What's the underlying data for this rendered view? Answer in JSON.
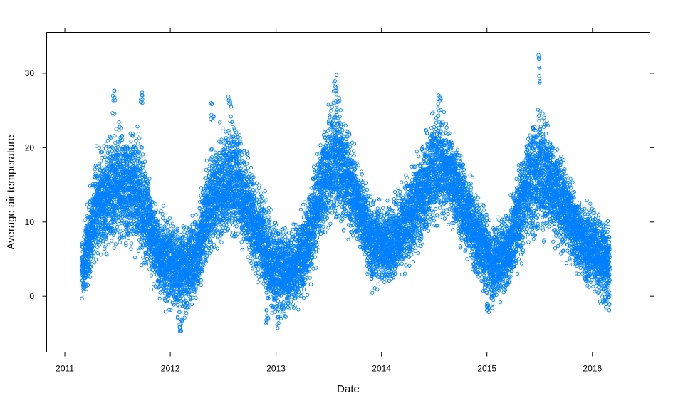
{
  "chart_data": {
    "type": "scatter",
    "title": "",
    "xlabel": "Date",
    "ylabel": "Average air temperature",
    "x_ticks": [
      "2011",
      "2012",
      "2013",
      "2014",
      "2015",
      "2016"
    ],
    "y_ticks": [
      "0",
      "10",
      "20",
      "30"
    ],
    "xlim": [
      "2010-10-30",
      "2016-07-18"
    ],
    "ylim": [
      -7.5,
      35.5
    ],
    "data_range": {
      "x": [
        "2011-03-01",
        "2016-03-01"
      ]
    },
    "marker": "open-circle",
    "color": "#0080ff",
    "grid": false,
    "legend": "none",
    "seasonal_profile": {
      "description_points": [
        {
          "x": "2011-03-05",
          "mean": 3,
          "spread": 7
        },
        {
          "x": "2011-04-15",
          "mean": 12,
          "spread": 9
        },
        {
          "x": "2011-07-01",
          "mean": 15,
          "spread": 10
        },
        {
          "x": "2011-09-15",
          "mean": 14,
          "spread": 10
        },
        {
          "x": "2011-11-15",
          "mean": 6,
          "spread": 7
        },
        {
          "x": "2012-02-01",
          "mean": 3,
          "spread": 8
        },
        {
          "x": "2012-03-25",
          "mean": 5,
          "spread": 7
        },
        {
          "x": "2012-06-01",
          "mean": 14,
          "spread": 10
        },
        {
          "x": "2012-08-15",
          "mean": 16,
          "spread": 10
        },
        {
          "x": "2012-10-15",
          "mean": 10,
          "spread": 8
        },
        {
          "x": "2012-12-20",
          "mean": 4,
          "spread": 8
        },
        {
          "x": "2013-02-15",
          "mean": 3,
          "spread": 7
        },
        {
          "x": "2013-04-10",
          "mean": 6,
          "spread": 8
        },
        {
          "x": "2013-06-15",
          "mean": 16,
          "spread": 9
        },
        {
          "x": "2013-07-25",
          "mean": 19,
          "spread": 11
        },
        {
          "x": "2013-09-25",
          "mean": 14,
          "spread": 8
        },
        {
          "x": "2013-12-01",
          "mean": 7,
          "spread": 7
        },
        {
          "x": "2014-02-01",
          "mean": 7,
          "spread": 7
        },
        {
          "x": "2014-04-01",
          "mean": 10,
          "spread": 8
        },
        {
          "x": "2014-07-15",
          "mean": 18,
          "spread": 9
        },
        {
          "x": "2014-09-01",
          "mean": 16,
          "spread": 8
        },
        {
          "x": "2014-11-15",
          "mean": 9,
          "spread": 7
        },
        {
          "x": "2015-01-20",
          "mean": 4,
          "spread": 7
        },
        {
          "x": "2015-03-15",
          "mean": 6,
          "spread": 7
        },
        {
          "x": "2015-05-15",
          "mean": 14,
          "spread": 9
        },
        {
          "x": "2015-07-05",
          "mean": 17,
          "spread": 11
        },
        {
          "x": "2015-09-10",
          "mean": 13,
          "spread": 8
        },
        {
          "x": "2015-11-15",
          "mean": 8,
          "spread": 7
        },
        {
          "x": "2016-01-15",
          "mean": 6,
          "spread": 7
        },
        {
          "x": "2016-03-01",
          "mean": 4,
          "spread": 7
        }
      ],
      "extremes": [
        {
          "x": "2011-06-20",
          "y": 27.8
        },
        {
          "x": "2011-09-25",
          "y": 27.5
        },
        {
          "x": "2012-02-05",
          "y": -4.8
        },
        {
          "x": "2012-05-25",
          "y": 26.4
        },
        {
          "x": "2012-07-25",
          "y": 27.0
        },
        {
          "x": "2012-12-01",
          "y": -4.0
        },
        {
          "x": "2013-01-10",
          "y": -4.5
        },
        {
          "x": "2013-07-25",
          "y": 30.1
        },
        {
          "x": "2014-07-20",
          "y": 27.3
        },
        {
          "x": "2015-01-05",
          "y": -2.3
        },
        {
          "x": "2015-07-02",
          "y": 32.5
        },
        {
          "x": "2016-02-15",
          "y": -1.5
        }
      ]
    }
  }
}
